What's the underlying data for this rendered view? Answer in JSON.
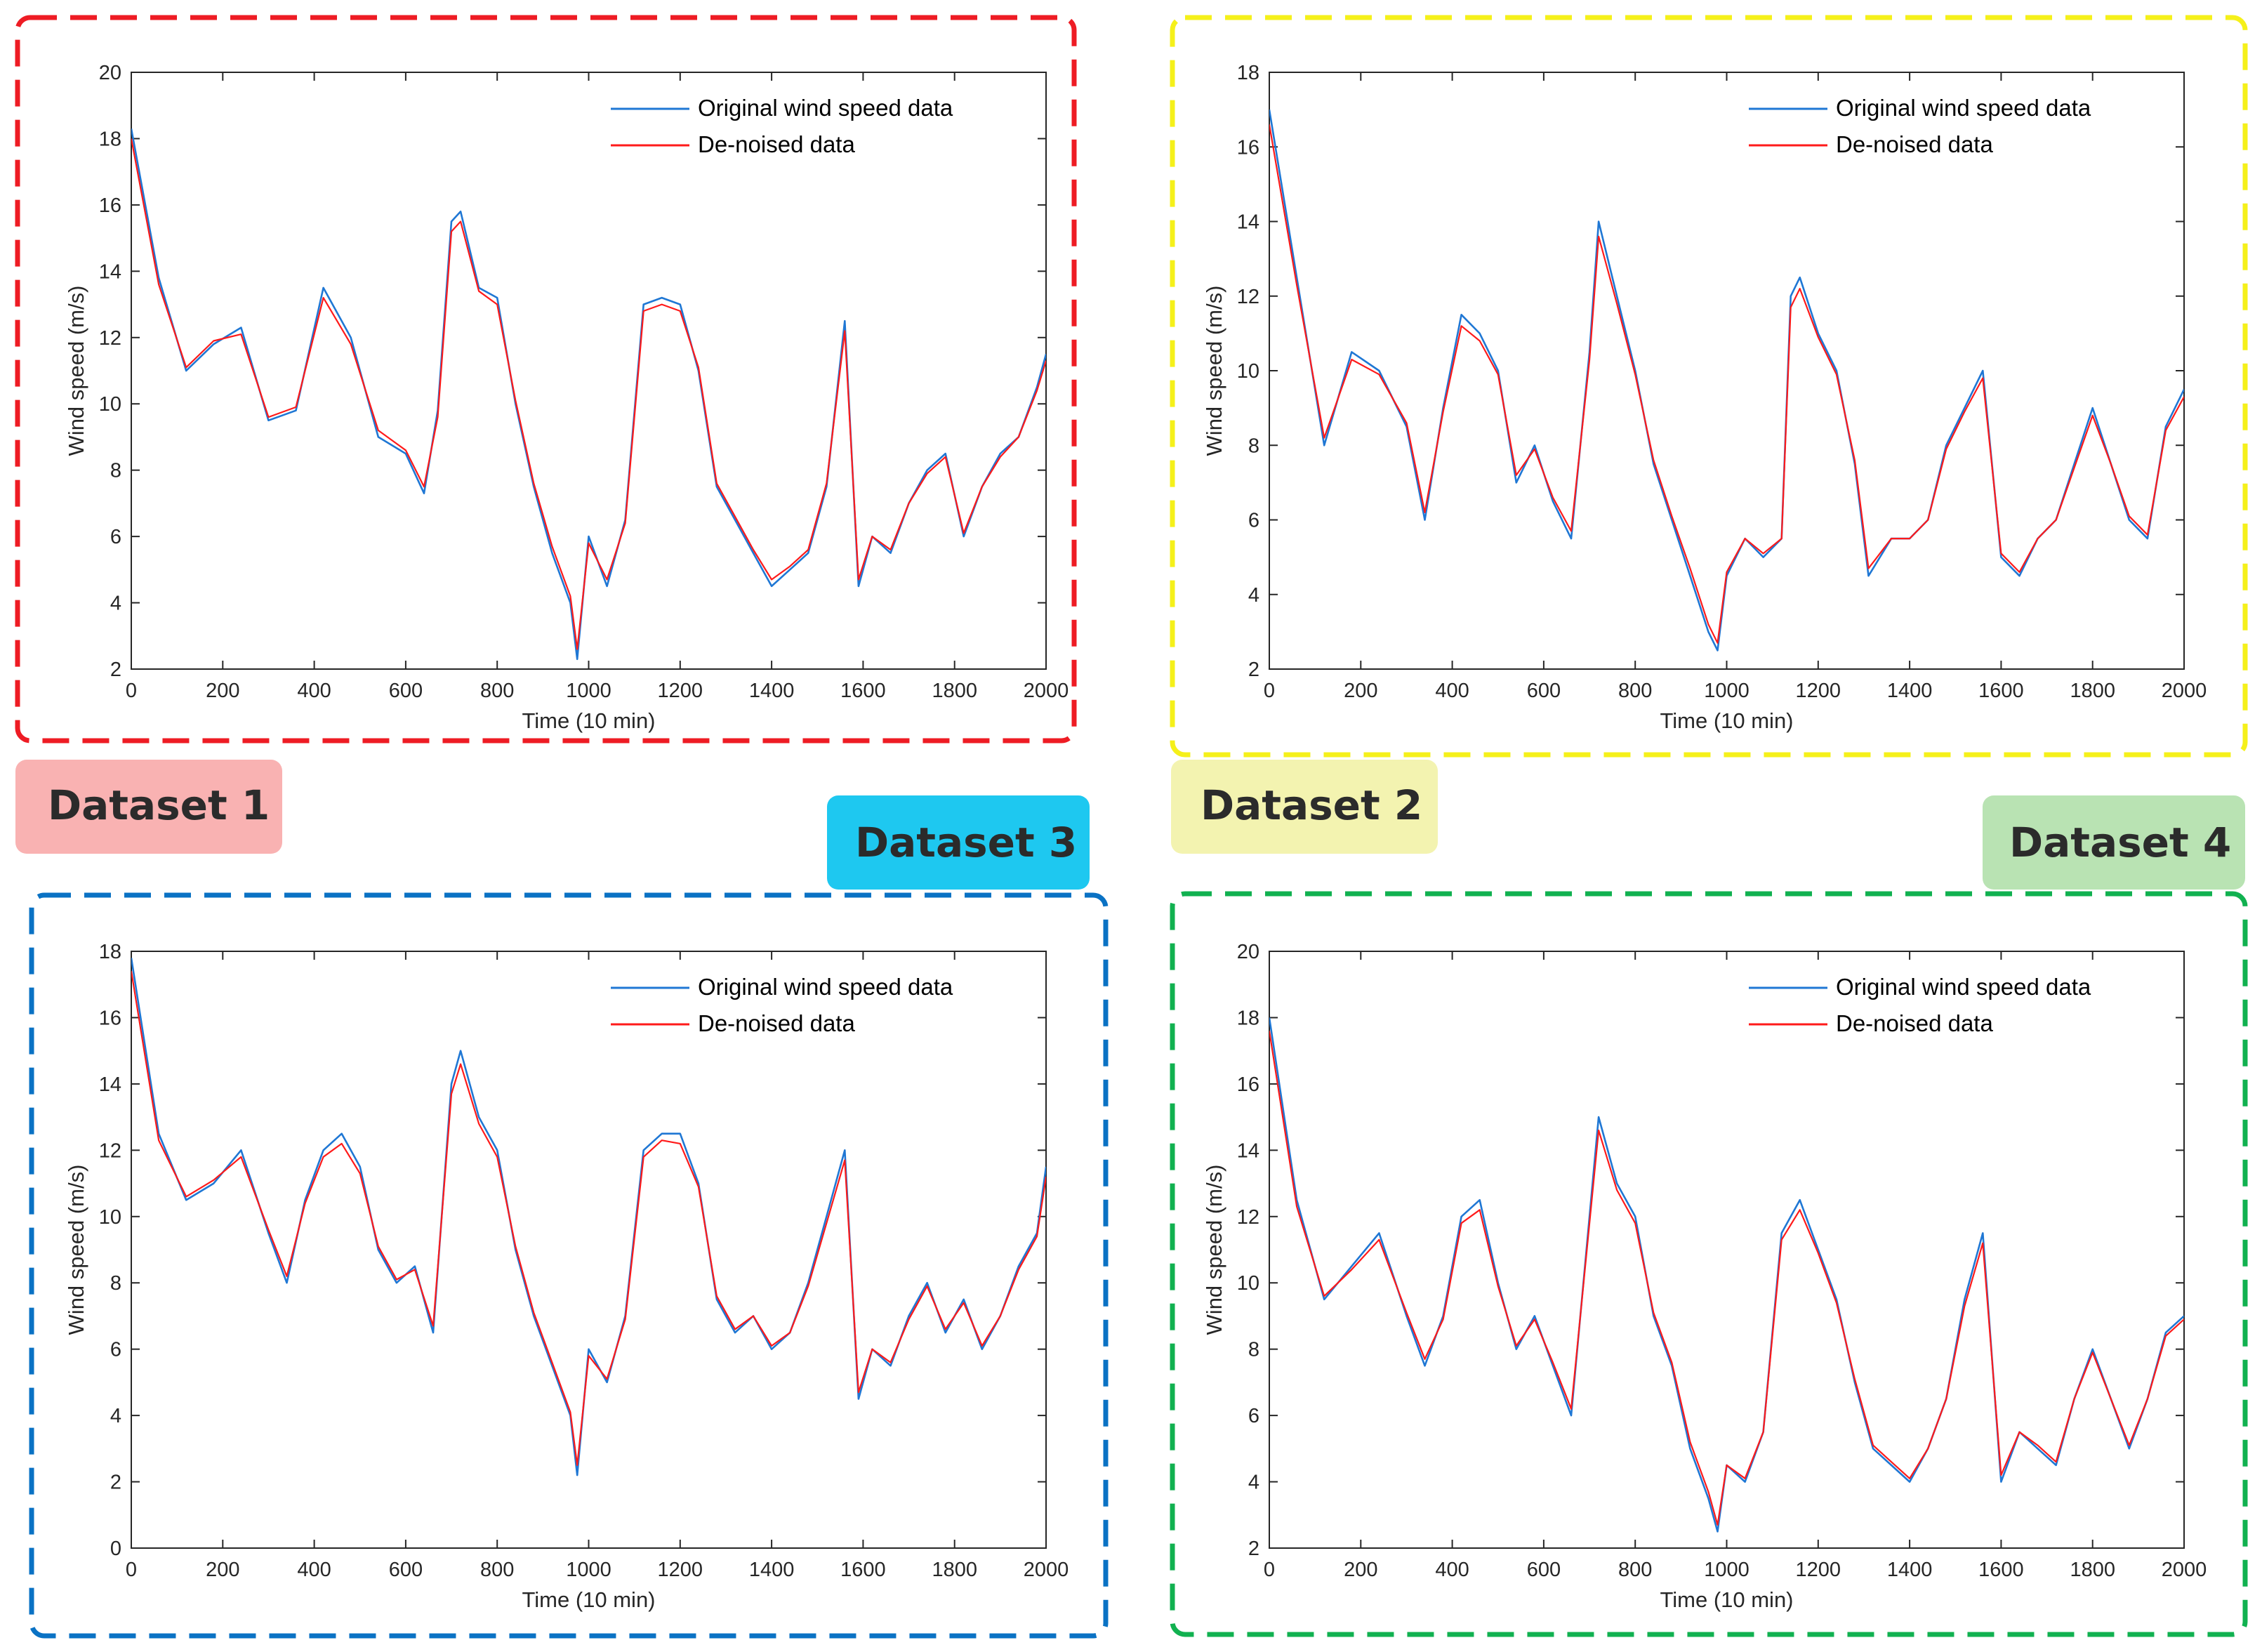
{
  "colors": {
    "original": "#1f77d4",
    "denoised": "#ff1a1a",
    "axis": "#262626"
  },
  "chart_data": [
    {
      "type": "line",
      "name": "Dataset 1",
      "badge_color": "#f9b2b2",
      "frame_color": "#ee1c24",
      "xlabel": "Time (10 min)",
      "ylabel": "Wind speed (m/s)",
      "xlim": [
        0,
        2000
      ],
      "ylim": [
        2,
        20
      ],
      "xticks": [
        0,
        200,
        400,
        600,
        800,
        1000,
        1200,
        1400,
        1600,
        1800,
        2000
      ],
      "yticks": [
        2,
        4,
        6,
        8,
        10,
        12,
        14,
        16,
        18,
        20
      ],
      "legend": [
        "Original wind speed data",
        "De-noised data"
      ],
      "series": [
        {
          "name": "Original wind speed data",
          "x": [
            0,
            60,
            120,
            180,
            240,
            300,
            360,
            420,
            480,
            540,
            600,
            640,
            670,
            700,
            720,
            760,
            800,
            840,
            880,
            920,
            960,
            975,
            1000,
            1040,
            1080,
            1120,
            1160,
            1200,
            1240,
            1280,
            1320,
            1360,
            1400,
            1440,
            1480,
            1520,
            1560,
            1590,
            1620,
            1660,
            1700,
            1740,
            1780,
            1820,
            1860,
            1900,
            1940,
            1980,
            2000
          ],
          "values": [
            18.3,
            13.8,
            11.0,
            11.8,
            12.3,
            9.5,
            9.8,
            13.5,
            12.0,
            9.0,
            8.5,
            7.3,
            9.8,
            15.5,
            15.8,
            13.5,
            13.2,
            10.0,
            7.5,
            5.5,
            4.0,
            2.3,
            6.0,
            4.5,
            6.5,
            13.0,
            13.2,
            13.0,
            11.0,
            7.5,
            6.5,
            5.5,
            4.5,
            5.0,
            5.5,
            7.5,
            12.5,
            4.5,
            6.0,
            5.5,
            7.0,
            8.0,
            8.5,
            6.0,
            7.5,
            8.5,
            9.0,
            10.5,
            11.5
          ]
        },
        {
          "name": "De-noised data",
          "x": [
            0,
            60,
            120,
            180,
            240,
            300,
            360,
            420,
            480,
            540,
            600,
            640,
            670,
            700,
            720,
            760,
            800,
            840,
            880,
            920,
            960,
            975,
            1000,
            1040,
            1080,
            1120,
            1160,
            1200,
            1240,
            1280,
            1320,
            1360,
            1400,
            1440,
            1480,
            1520,
            1560,
            1590,
            1620,
            1660,
            1700,
            1740,
            1780,
            1820,
            1860,
            1900,
            1940,
            1980,
            2000
          ],
          "values": [
            18.0,
            13.6,
            11.1,
            11.9,
            12.1,
            9.6,
            9.9,
            13.2,
            11.8,
            9.2,
            8.6,
            7.5,
            9.6,
            15.2,
            15.5,
            13.4,
            13.0,
            10.1,
            7.6,
            5.7,
            4.2,
            2.6,
            5.8,
            4.7,
            6.4,
            12.8,
            13.0,
            12.8,
            11.1,
            7.6,
            6.6,
            5.6,
            4.7,
            5.1,
            5.6,
            7.6,
            12.2,
            4.7,
            6.0,
            5.6,
            7.0,
            7.9,
            8.4,
            6.1,
            7.5,
            8.4,
            9.0,
            10.4,
            11.3
          ]
        }
      ]
    },
    {
      "type": "line",
      "name": "Dataset 2",
      "badge_color": "#f3f3b0",
      "frame_color": "#f5f01a",
      "xlabel": "Time (10 min)",
      "ylabel": "Wind speed (m/s)",
      "xlim": [
        0,
        2000
      ],
      "ylim": [
        2,
        18
      ],
      "xticks": [
        0,
        200,
        400,
        600,
        800,
        1000,
        1200,
        1400,
        1600,
        1800,
        2000
      ],
      "yticks": [
        2,
        4,
        6,
        8,
        10,
        12,
        14,
        16,
        18
      ],
      "legend": [
        "Original wind speed data",
        "De-noised data"
      ],
      "series": [
        {
          "name": "Original wind speed data",
          "x": [
            0,
            60,
            120,
            180,
            240,
            300,
            340,
            380,
            420,
            460,
            500,
            540,
            580,
            620,
            660,
            700,
            720,
            760,
            800,
            840,
            880,
            920,
            960,
            980,
            1000,
            1040,
            1080,
            1120,
            1140,
            1160,
            1200,
            1240,
            1280,
            1310,
            1360,
            1400,
            1440,
            1480,
            1520,
            1560,
            1600,
            1640,
            1680,
            1720,
            1760,
            1800,
            1840,
            1880,
            1920,
            1960,
            2000
          ],
          "values": [
            17.0,
            12.5,
            8.0,
            10.5,
            10.0,
            8.5,
            6.0,
            9.0,
            11.5,
            11.0,
            10.0,
            7.0,
            8.0,
            6.5,
            5.5,
            10.5,
            14.0,
            12.0,
            10.0,
            7.5,
            6.0,
            4.5,
            3.0,
            2.5,
            4.5,
            5.5,
            5.0,
            5.5,
            12.0,
            12.5,
            11.0,
            10.0,
            7.5,
            4.5,
            5.5,
            5.5,
            6.0,
            8.0,
            9.0,
            10.0,
            5.0,
            4.5,
            5.5,
            6.0,
            7.5,
            9.0,
            7.5,
            6.0,
            5.5,
            8.5,
            9.5
          ]
        },
        {
          "name": "De-noised data",
          "x": [
            0,
            60,
            120,
            180,
            240,
            300,
            340,
            380,
            420,
            460,
            500,
            540,
            580,
            620,
            660,
            700,
            720,
            760,
            800,
            840,
            880,
            920,
            960,
            980,
            1000,
            1040,
            1080,
            1120,
            1140,
            1160,
            1200,
            1240,
            1280,
            1310,
            1360,
            1400,
            1440,
            1480,
            1520,
            1560,
            1600,
            1640,
            1680,
            1720,
            1760,
            1800,
            1840,
            1880,
            1920,
            1960,
            2000
          ],
          "values": [
            16.6,
            12.3,
            8.2,
            10.3,
            9.9,
            8.6,
            6.2,
            8.9,
            11.2,
            10.8,
            9.9,
            7.2,
            7.9,
            6.6,
            5.7,
            10.3,
            13.6,
            11.8,
            9.9,
            7.6,
            6.1,
            4.7,
            3.2,
            2.7,
            4.6,
            5.5,
            5.1,
            5.5,
            11.7,
            12.2,
            10.9,
            9.9,
            7.6,
            4.7,
            5.5,
            5.5,
            6.0,
            7.9,
            8.9,
            9.8,
            5.1,
            4.6,
            5.5,
            6.0,
            7.4,
            8.8,
            7.5,
            6.1,
            5.6,
            8.4,
            9.3
          ]
        }
      ]
    },
    {
      "type": "line",
      "name": "Dataset 3",
      "badge_color": "#1ec8f0",
      "frame_color": "#0a72c4",
      "xlabel": "Time (10 min)",
      "ylabel": "Wind speed (m/s)",
      "xlim": [
        0,
        2000
      ],
      "ylim": [
        0,
        18
      ],
      "xticks": [
        0,
        200,
        400,
        600,
        800,
        1000,
        1200,
        1400,
        1600,
        1800,
        2000
      ],
      "yticks": [
        0,
        2,
        4,
        6,
        8,
        10,
        12,
        14,
        16,
        18
      ],
      "legend": [
        "Original wind speed data",
        "De-noised data"
      ],
      "series": [
        {
          "name": "Original wind speed data",
          "x": [
            0,
            60,
            120,
            180,
            240,
            300,
            340,
            380,
            420,
            460,
            500,
            540,
            580,
            620,
            660,
            700,
            720,
            760,
            800,
            840,
            880,
            920,
            960,
            975,
            1000,
            1040,
            1080,
            1120,
            1160,
            1200,
            1240,
            1280,
            1320,
            1360,
            1400,
            1440,
            1480,
            1520,
            1560,
            1590,
            1620,
            1660,
            1700,
            1740,
            1780,
            1820,
            1860,
            1900,
            1940,
            1980,
            2000
          ],
          "values": [
            17.8,
            12.5,
            10.5,
            11.0,
            12.0,
            9.5,
            8.0,
            10.5,
            12.0,
            12.5,
            11.5,
            9.0,
            8.0,
            8.5,
            6.5,
            14.0,
            15.0,
            13.0,
            12.0,
            9.0,
            7.0,
            5.5,
            4.0,
            2.2,
            6.0,
            5.0,
            7.0,
            12.0,
            12.5,
            12.5,
            11.0,
            7.5,
            6.5,
            7.0,
            6.0,
            6.5,
            8.0,
            10.0,
            12.0,
            4.5,
            6.0,
            5.5,
            7.0,
            8.0,
            6.5,
            7.5,
            6.0,
            7.0,
            8.5,
            9.5,
            11.5
          ]
        },
        {
          "name": "De-noised data",
          "x": [
            0,
            60,
            120,
            180,
            240,
            300,
            340,
            380,
            420,
            460,
            500,
            540,
            580,
            620,
            660,
            700,
            720,
            760,
            800,
            840,
            880,
            920,
            960,
            975,
            1000,
            1040,
            1080,
            1120,
            1160,
            1200,
            1240,
            1280,
            1320,
            1360,
            1400,
            1440,
            1480,
            1520,
            1560,
            1590,
            1620,
            1660,
            1700,
            1740,
            1780,
            1820,
            1860,
            1900,
            1940,
            1980,
            2000
          ],
          "values": [
            17.4,
            12.3,
            10.6,
            11.1,
            11.8,
            9.6,
            8.2,
            10.4,
            11.8,
            12.2,
            11.3,
            9.1,
            8.1,
            8.4,
            6.7,
            13.7,
            14.6,
            12.8,
            11.8,
            9.1,
            7.1,
            5.6,
            4.1,
            2.5,
            5.8,
            5.1,
            6.9,
            11.8,
            12.3,
            12.2,
            10.9,
            7.6,
            6.6,
            7.0,
            6.1,
            6.5,
            7.9,
            9.8,
            11.7,
            4.7,
            6.0,
            5.6,
            6.9,
            7.9,
            6.6,
            7.4,
            6.1,
            7.0,
            8.4,
            9.4,
            11.2
          ]
        }
      ]
    },
    {
      "type": "line",
      "name": "Dataset 4",
      "badge_color": "#b9e3b3",
      "frame_color": "#11b150",
      "xlabel": "Time (10 min)",
      "ylabel": "Wind speed (m/s)",
      "xlim": [
        0,
        2000
      ],
      "ylim": [
        2,
        20
      ],
      "xticks": [
        0,
        200,
        400,
        600,
        800,
        1000,
        1200,
        1400,
        1600,
        1800,
        2000
      ],
      "yticks": [
        2,
        4,
        6,
        8,
        10,
        12,
        14,
        16,
        18,
        20
      ],
      "legend": [
        "Original wind speed data",
        "De-noised data"
      ],
      "series": [
        {
          "name": "Original wind speed data",
          "x": [
            0,
            60,
            120,
            180,
            240,
            300,
            340,
            380,
            420,
            460,
            500,
            540,
            580,
            620,
            660,
            700,
            720,
            760,
            800,
            840,
            880,
            920,
            960,
            980,
            1000,
            1040,
            1080,
            1120,
            1160,
            1200,
            1240,
            1280,
            1320,
            1360,
            1400,
            1440,
            1480,
            1520,
            1560,
            1600,
            1640,
            1680,
            1720,
            1760,
            1800,
            1840,
            1880,
            1920,
            1960,
            2000
          ],
          "values": [
            18.0,
            12.5,
            9.5,
            10.5,
            11.5,
            9.0,
            7.5,
            9.0,
            12.0,
            12.5,
            10.0,
            8.0,
            9.0,
            7.5,
            6.0,
            12.0,
            15.0,
            13.0,
            12.0,
            9.0,
            7.5,
            5.0,
            3.5,
            2.5,
            4.5,
            4.0,
            5.5,
            11.5,
            12.5,
            11.0,
            9.5,
            7.0,
            5.0,
            4.5,
            4.0,
            5.0,
            6.5,
            9.5,
            11.5,
            4.0,
            5.5,
            5.0,
            4.5,
            6.5,
            8.0,
            6.5,
            5.0,
            6.5,
            8.5,
            9.0
          ]
        },
        {
          "name": "De-noised data",
          "x": [
            0,
            60,
            120,
            180,
            240,
            300,
            340,
            380,
            420,
            460,
            500,
            540,
            580,
            620,
            660,
            700,
            720,
            760,
            800,
            840,
            880,
            920,
            960,
            980,
            1000,
            1040,
            1080,
            1120,
            1160,
            1200,
            1240,
            1280,
            1320,
            1360,
            1400,
            1440,
            1480,
            1520,
            1560,
            1600,
            1640,
            1680,
            1720,
            1760,
            1800,
            1840,
            1880,
            1920,
            1960,
            2000
          ],
          "values": [
            17.6,
            12.3,
            9.6,
            10.4,
            11.3,
            9.1,
            7.7,
            8.9,
            11.8,
            12.2,
            9.9,
            8.1,
            8.9,
            7.6,
            6.2,
            11.8,
            14.6,
            12.8,
            11.8,
            9.1,
            7.6,
            5.2,
            3.7,
            2.7,
            4.5,
            4.1,
            5.5,
            11.3,
            12.2,
            10.9,
            9.4,
            7.1,
            5.1,
            4.6,
            4.1,
            5.0,
            6.5,
            9.3,
            11.2,
            4.2,
            5.5,
            5.1,
            4.6,
            6.5,
            7.9,
            6.5,
            5.1,
            6.5,
            8.4,
            8.9
          ]
        }
      ]
    }
  ]
}
